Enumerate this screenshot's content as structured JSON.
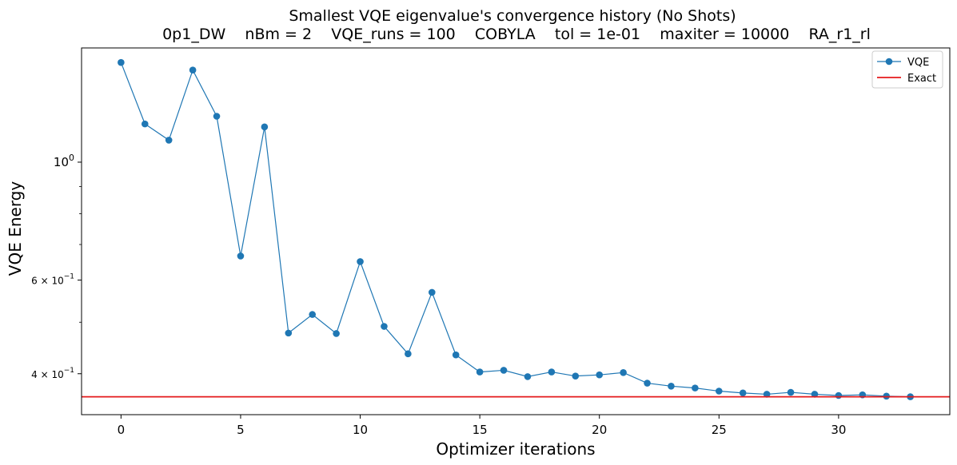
{
  "chart_data": {
    "type": "line",
    "title": "Smallest VQE eigenvalue's convergence history (No Shots)",
    "subtitle": "0p1_DW    nBm = 2    VQE_runs = 100    COBYLA    tol = 1e-01    maxiter = 10000    RA_r1_rl",
    "xlabel": "Optimizer iterations",
    "ylabel": "VQE Energy",
    "yscale": "log",
    "xlim": [
      -1.65,
      34.65
    ],
    "ylim": [
      0.335,
      1.64
    ],
    "xticks": [
      0,
      5,
      10,
      15,
      20,
      25,
      30
    ],
    "xtick_labels": [
      "0",
      "5",
      "10",
      "15",
      "20",
      "25",
      "30"
    ],
    "yticks": [
      {
        "value": 1.0,
        "label_base": "10",
        "label_exp": "0"
      },
      {
        "value": 0.6,
        "label_base": "6 × 10",
        "label_exp": "−1"
      },
      {
        "value": 0.4,
        "label_base": "4 × 10",
        "label_exp": "−1"
      }
    ],
    "yminor_ticks": [
      0.5,
      0.7,
      0.8,
      0.9
    ],
    "grid": false,
    "legend_position": "top-right",
    "series": [
      {
        "name": "VQE",
        "color": "#1f77b4",
        "marker": "circle",
        "x": [
          0,
          1,
          2,
          3,
          4,
          5,
          6,
          7,
          8,
          9,
          10,
          11,
          12,
          13,
          14,
          15,
          16,
          17,
          18,
          19,
          20,
          21,
          22,
          23,
          24,
          25,
          26,
          27,
          28,
          29,
          30,
          31,
          32,
          33
        ],
        "y": [
          1.54,
          1.18,
          1.1,
          1.49,
          1.22,
          0.666,
          1.165,
          0.477,
          0.517,
          0.476,
          0.65,
          0.491,
          0.436,
          0.569,
          0.434,
          0.403,
          0.406,
          0.395,
          0.403,
          0.396,
          0.398,
          0.402,
          0.384,
          0.379,
          0.376,
          0.371,
          0.368,
          0.366,
          0.369,
          0.366,
          0.364,
          0.365,
          0.363,
          0.362
        ]
      },
      {
        "name": "Exact",
        "color": "#e41a1c",
        "type": "hline",
        "y": 0.362
      }
    ]
  }
}
